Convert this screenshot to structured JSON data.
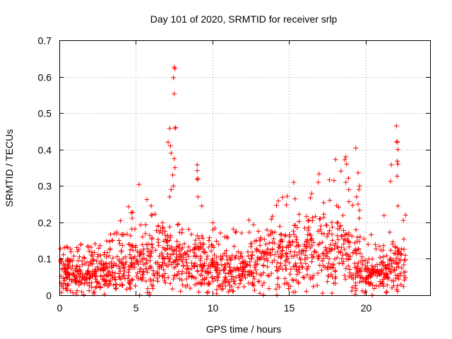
{
  "chart_data": {
    "type": "scatter",
    "title": "Day 101 of 2020, SRMTID for receiver srlp",
    "xlabel": "GPS time / hours",
    "ylabel": "SRMTID / TECUs",
    "xlim": [
      0,
      24.2
    ],
    "ylim": [
      0,
      0.7
    ],
    "x_ticks": [
      0,
      5,
      10,
      15,
      20
    ],
    "y_ticks": [
      "0",
      "0.1",
      "0.2",
      "0.3",
      "0.4",
      "0.5",
      "0.6",
      "0.7"
    ],
    "grid": true,
    "marker": "plus",
    "series_color": "#ff0000",
    "data_span_hours": [
      0,
      22.6
    ],
    "background_level": {
      "x": [
        0,
        1,
        2,
        3,
        4,
        5,
        6,
        7,
        8,
        9,
        10,
        11,
        12,
        13,
        14,
        15,
        16,
        17,
        18,
        19,
        20,
        21,
        22,
        22.6
      ],
      "mean": [
        0.06,
        0.05,
        0.06,
        0.07,
        0.08,
        0.09,
        0.09,
        0.1,
        0.08,
        0.08,
        0.07,
        0.06,
        0.07,
        0.09,
        0.1,
        0.11,
        0.11,
        0.12,
        0.12,
        0.1,
        0.05,
        0.06,
        0.08,
        0.09
      ],
      "max": [
        0.13,
        0.14,
        0.14,
        0.15,
        0.21,
        0.3,
        0.25,
        0.24,
        0.2,
        0.2,
        0.2,
        0.17,
        0.23,
        0.2,
        0.27,
        0.31,
        0.25,
        0.33,
        0.38,
        0.4,
        0.2,
        0.19,
        0.46,
        0.22
      ]
    },
    "peak_points": [
      {
        "x": 7.5,
        "y": 0.626
      },
      {
        "x": 7.55,
        "y": 0.622
      },
      {
        "x": 7.45,
        "y": 0.597
      },
      {
        "x": 7.5,
        "y": 0.553
      },
      {
        "x": 7.2,
        "y": 0.458
      },
      {
        "x": 7.55,
        "y": 0.459
      },
      {
        "x": 7.6,
        "y": 0.46
      },
      {
        "x": 7.1,
        "y": 0.42
      },
      {
        "x": 7.25,
        "y": 0.41
      },
      {
        "x": 7.3,
        "y": 0.39
      },
      {
        "x": 7.5,
        "y": 0.375
      },
      {
        "x": 7.55,
        "y": 0.35
      },
      {
        "x": 7.4,
        "y": 0.33
      },
      {
        "x": 7.45,
        "y": 0.3
      },
      {
        "x": 7.3,
        "y": 0.29
      },
      {
        "x": 7.2,
        "y": 0.27
      },
      {
        "x": 9.0,
        "y": 0.358
      },
      {
        "x": 9.0,
        "y": 0.342
      },
      {
        "x": 9.05,
        "y": 0.32
      },
      {
        "x": 9.0,
        "y": 0.318
      },
      {
        "x": 9.05,
        "y": 0.27
      },
      {
        "x": 9.3,
        "y": 0.245
      },
      {
        "x": 5.2,
        "y": 0.304
      },
      {
        "x": 16.95,
        "y": 0.333
      },
      {
        "x": 16.9,
        "y": 0.31
      },
      {
        "x": 15.3,
        "y": 0.31
      },
      {
        "x": 18.7,
        "y": 0.38
      },
      {
        "x": 18.75,
        "y": 0.36
      },
      {
        "x": 18.7,
        "y": 0.31
      },
      {
        "x": 19.35,
        "y": 0.404
      },
      {
        "x": 19.5,
        "y": 0.336
      },
      {
        "x": 19.6,
        "y": 0.3
      },
      {
        "x": 19.55,
        "y": 0.29
      },
      {
        "x": 19.4,
        "y": 0.27
      },
      {
        "x": 19.5,
        "y": 0.25
      },
      {
        "x": 22.0,
        "y": 0.465
      },
      {
        "x": 22.05,
        "y": 0.42
      },
      {
        "x": 22.1,
        "y": 0.4
      },
      {
        "x": 22.05,
        "y": 0.368
      },
      {
        "x": 22.1,
        "y": 0.36
      },
      {
        "x": 22.05,
        "y": 0.327
      },
      {
        "x": 22.1,
        "y": 0.245
      },
      {
        "x": 22.6,
        "y": 0.22
      }
    ]
  }
}
